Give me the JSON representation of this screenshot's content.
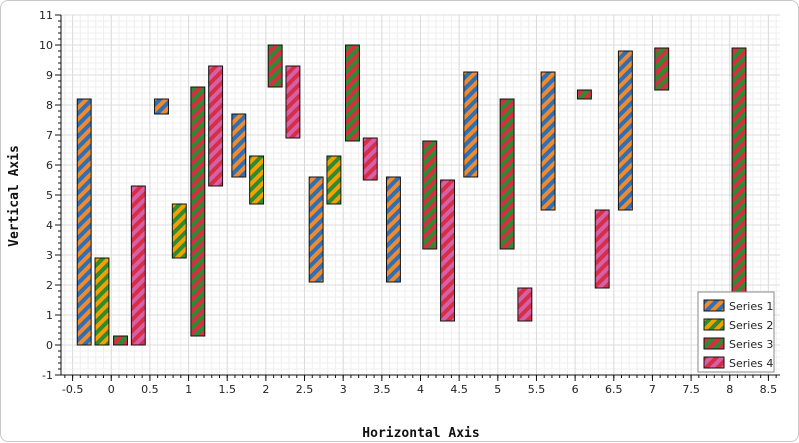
{
  "chart_data": {
    "type": "bar",
    "subtype": "floating-range",
    "title": "",
    "xlabel": "Horizontal Axis",
    "ylabel": "Vertical Axis",
    "xlim": [
      -0.65,
      8.65
    ],
    "ylim": [
      -1,
      11
    ],
    "x_ticks": [
      "-0.5",
      "0",
      "0.5",
      "1",
      "1.5",
      "2",
      "2.5",
      "3",
      "3.5",
      "4",
      "4.5",
      "5",
      "5.5",
      "6",
      "6.5",
      "7",
      "7.5",
      "8",
      "8.5"
    ],
    "y_ticks": [
      "-1",
      "0",
      "1",
      "2",
      "3",
      "4",
      "5",
      "6",
      "7",
      "8",
      "9",
      "10",
      "11"
    ],
    "grid": true,
    "legend_position": "bottom-right",
    "bar_width": 0.18,
    "series": [
      {
        "name": "Series 1",
        "color": "#2f6fb5",
        "stripe": "#f08a2c",
        "bars": [
          {
            "x": -0.35,
            "low": 0,
            "high": 8.2
          },
          {
            "x": 0.65,
            "low": 7.7,
            "high": 8.2
          },
          {
            "x": 1.65,
            "low": 5.6,
            "high": 7.7
          },
          {
            "x": 2.65,
            "low": 2.1,
            "high": 5.6
          },
          {
            "x": 3.65,
            "low": 2.1,
            "high": 5.6
          },
          {
            "x": 4.65,
            "low": 5.6,
            "high": 9.1
          },
          {
            "x": 5.65,
            "low": 4.5,
            "high": 9.1
          },
          {
            "x": 6.65,
            "low": 4.5,
            "high": 9.8
          }
        ]
      },
      {
        "name": "Series 2",
        "color": "#2e8b2e",
        "stripe": "#f5a000",
        "bars": [
          {
            "x": -0.12,
            "low": 0,
            "high": 2.9
          },
          {
            "x": 0.88,
            "low": 2.9,
            "high": 4.7
          },
          {
            "x": 1.88,
            "low": 4.7,
            "high": 6.3
          },
          {
            "x": 2.88,
            "low": 4.7,
            "high": 6.3
          }
        ]
      },
      {
        "name": "Series 3",
        "color": "#2e8b2e",
        "stripe": "#d62f45",
        "bars": [
          {
            "x": 0.12,
            "low": 0,
            "high": 0.3
          },
          {
            "x": 1.12,
            "low": 0.3,
            "high": 8.6
          },
          {
            "x": 2.12,
            "low": 8.6,
            "high": 10
          },
          {
            "x": 3.12,
            "low": 6.8,
            "high": 10
          },
          {
            "x": 4.12,
            "low": 3.2,
            "high": 6.8
          },
          {
            "x": 5.12,
            "low": 3.2,
            "high": 8.2
          },
          {
            "x": 6.12,
            "low": 8.2,
            "high": 8.5
          },
          {
            "x": 7.12,
            "low": 8.5,
            "high": 9.9
          },
          {
            "x": 8.12,
            "low": 0.8,
            "high": 9.9
          }
        ]
      },
      {
        "name": "Series 4",
        "color": "#d62f45",
        "stripe": "#d660a8",
        "bars": [
          {
            "x": 0.35,
            "low": 0,
            "high": 5.3
          },
          {
            "x": 1.35,
            "low": 5.3,
            "high": 9.3
          },
          {
            "x": 2.35,
            "low": 6.9,
            "high": 9.3
          },
          {
            "x": 3.35,
            "low": 5.5,
            "high": 6.9
          },
          {
            "x": 4.35,
            "low": 0.8,
            "high": 5.5
          },
          {
            "x": 5.35,
            "low": 0.8,
            "high": 1.9
          },
          {
            "x": 6.35,
            "low": 1.9,
            "high": 4.5
          }
        ]
      }
    ]
  }
}
